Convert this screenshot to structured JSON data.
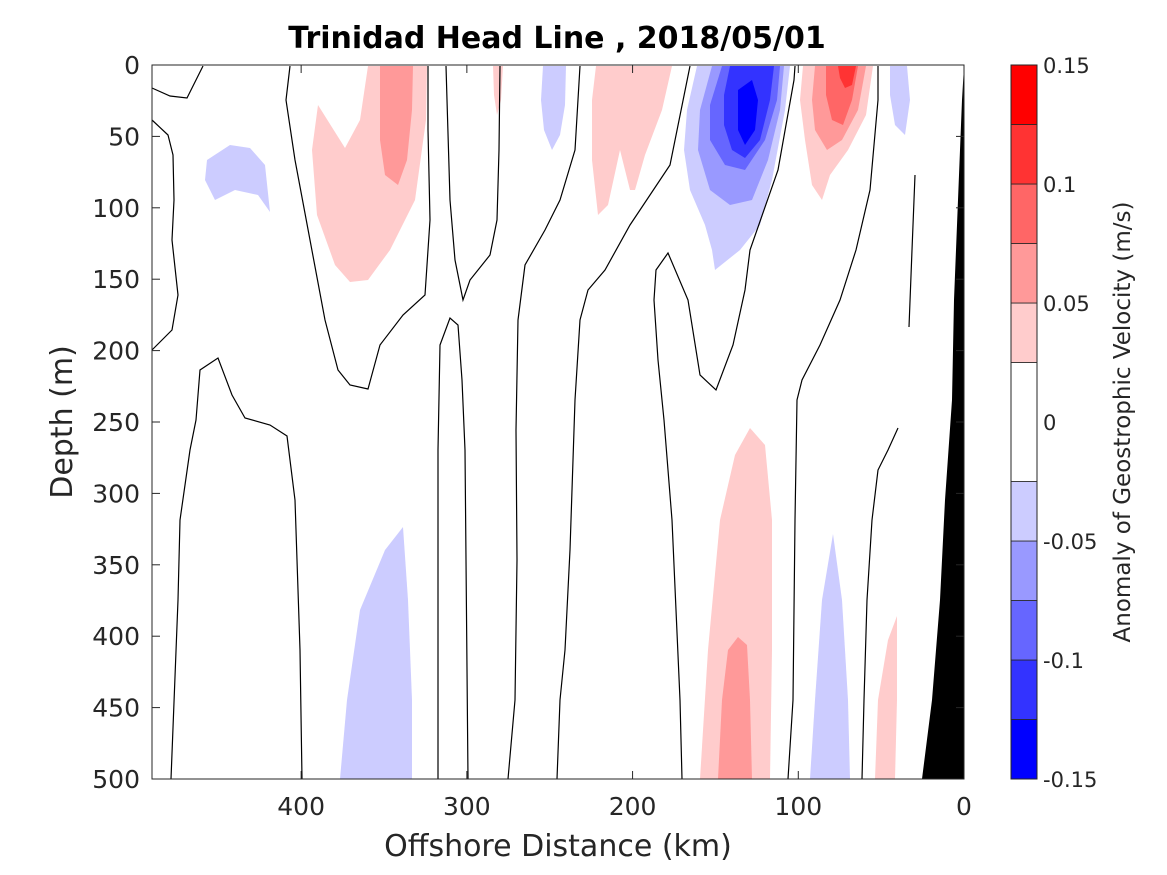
{
  "chart_data": {
    "type": "heatmap",
    "subtype": "filled-contour",
    "title": "Trinidad Head Line , 2018/05/01",
    "xlabel": "Offshore Distance (km)",
    "ylabel": "Depth (m)",
    "xlim": [
      490,
      0
    ],
    "x_reversed": true,
    "ylim": [
      0,
      500
    ],
    "y_reversed": true,
    "xticks": [
      400,
      300,
      200,
      100,
      0
    ],
    "yticks": [
      0,
      50,
      100,
      150,
      200,
      250,
      300,
      350,
      400,
      450,
      500
    ],
    "grid": false,
    "colorbar": {
      "label": "Anomaly of Geostrophic Velocity (m/s)",
      "range": [
        -0.15,
        0.15
      ],
      "ticks": [
        0.15,
        0.1,
        0.05,
        0,
        -0.05,
        -0.1,
        -0.15
      ],
      "levels": [
        -0.15,
        -0.125,
        -0.1,
        -0.075,
        -0.05,
        -0.025,
        0.025,
        0.05,
        0.075,
        0.1,
        0.125,
        0.15
      ],
      "colors": [
        "#0000ff",
        "#3333ff",
        "#6666ff",
        "#9999ff",
        "#ccccff",
        "#ffffff",
        "#ffcccc",
        "#ff9999",
        "#ff6666",
        "#ff3333",
        "#ff0000"
      ]
    },
    "features": [
      {
        "sign": "negative",
        "peak": -0.14,
        "x_km": 127,
        "depth_m": 35
      },
      {
        "sign": "positive",
        "peak": 0.125,
        "x_km": 73,
        "depth_m": 5
      },
      {
        "sign": "positive",
        "peak": 0.075,
        "x_km": 342,
        "depth_m": 40
      },
      {
        "sign": "positive",
        "peak": 0.075,
        "x_km": 132,
        "depth_m": 460
      },
      {
        "sign": "negative",
        "peak": -0.05,
        "x_km": 455,
        "depth_m": 85
      },
      {
        "sign": "negative",
        "peak": -0.05,
        "x_km": 355,
        "depth_m": 430
      },
      {
        "sign": "negative",
        "peak": -0.05,
        "x_km": 85,
        "depth_m": 440
      },
      {
        "sign": "positive",
        "peak": 0.05,
        "x_km": 210,
        "depth_m": 50
      },
      {
        "sign": "negative",
        "peak": -0.05,
        "x_km": 255,
        "depth_m": 25
      },
      {
        "sign": "negative",
        "peak": -0.05,
        "x_km": 38,
        "depth_m": 25
      },
      {
        "sign": "positive",
        "peak": 0.05,
        "x_km": 45,
        "depth_m": 450
      }
    ],
    "bathymetry": "black wedge near the coast (x = 0 to 25 km)"
  }
}
